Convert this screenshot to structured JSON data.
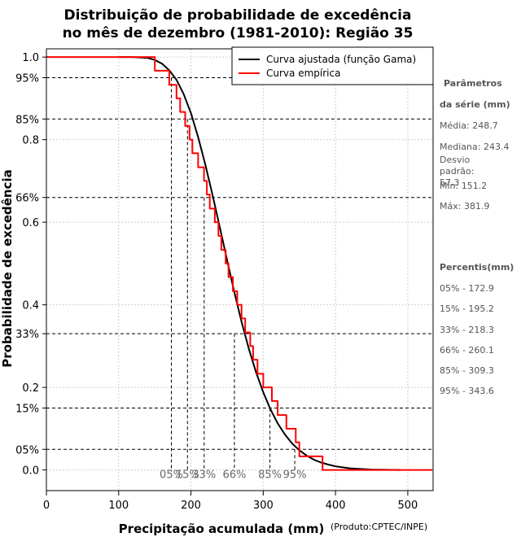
{
  "chart_data": {
    "type": "line",
    "title": [
      "Distribuição de probabilidade de excedência",
      "no mês de dezembro (1981-2010): Região 35"
    ],
    "xlabel": "Precipitação acumulada (mm)",
    "ylabel": "Probabilidade de excedência",
    "xlim": [
      0,
      535
    ],
    "ylim": [
      -0.05,
      1.02
    ],
    "x_ticks": [
      0,
      100,
      200,
      300,
      400,
      500
    ],
    "y_ticks": [
      {
        "value": 0.0,
        "label": "0.0"
      },
      {
        "value": 0.2,
        "label": "0.2"
      },
      {
        "value": 0.4,
        "label": "0.4"
      },
      {
        "value": 0.6,
        "label": "0.6"
      },
      {
        "value": 0.8,
        "label": "0.8"
      },
      {
        "value": 1.0,
        "label": "1.0"
      }
    ],
    "percentile_levels": [
      {
        "value": 0.95,
        "label": "95%"
      },
      {
        "value": 0.85,
        "label": "85%"
      },
      {
        "value": 0.66,
        "label": "66%"
      },
      {
        "value": 0.33,
        "label": "33%"
      },
      {
        "value": 0.15,
        "label": "15%"
      },
      {
        "value": 0.05,
        "label": "05%"
      }
    ],
    "percentile_marks": [
      {
        "label": "05%",
        "x": 172.9,
        "prob": 0.95
      },
      {
        "label": "15%",
        "x": 195.2,
        "prob": 0.85
      },
      {
        "label": "33%",
        "x": 218.3,
        "prob": 0.66
      },
      {
        "label": "66%",
        "x": 260.1,
        "prob": 0.33
      },
      {
        "label": "85%",
        "x": 309.3,
        "prob": 0.15
      },
      {
        "label": "95%",
        "x": 343.6,
        "prob": 0.05
      }
    ],
    "grid": true,
    "legend": {
      "placement": "top-right",
      "entries": [
        {
          "name": "Curva ajustada (função Gama)",
          "color": "#000000"
        },
        {
          "name": "Curva empírica",
          "color": "#ff0000"
        }
      ]
    },
    "series": [
      {
        "name": "Curva ajustada (função Gama)",
        "color": "#000000",
        "x": [
          100,
          120,
          140,
          150,
          160,
          170,
          180,
          190,
          200,
          210,
          220,
          230,
          240,
          250,
          260,
          270,
          280,
          290,
          300,
          310,
          320,
          330,
          340,
          350,
          360,
          370,
          380,
          390,
          400,
          420,
          450,
          490
        ],
        "y": [
          1.0,
          1.0,
          0.998,
          0.993,
          0.984,
          0.968,
          0.945,
          0.91,
          0.864,
          0.806,
          0.739,
          0.665,
          0.587,
          0.508,
          0.431,
          0.359,
          0.294,
          0.237,
          0.188,
          0.147,
          0.113,
          0.086,
          0.064,
          0.048,
          0.035,
          0.025,
          0.018,
          0.013,
          0.009,
          0.004,
          0.001,
          0.0
        ]
      },
      {
        "name": "Curva empírica",
        "color": "#ff0000",
        "step": true,
        "x": [
          0,
          150,
          150,
          155,
          155,
          170,
          170,
          180,
          180,
          185,
          185,
          192,
          192,
          198,
          198,
          202,
          202,
          210,
          210,
          218,
          218,
          222,
          222,
          226,
          226,
          233,
          233,
          238,
          238,
          242,
          242,
          248,
          248,
          252,
          252,
          258,
          258,
          264,
          264,
          270,
          270,
          275,
          275,
          282,
          282,
          286,
          286,
          292,
          292,
          300,
          300,
          312,
          312,
          320,
          320,
          332,
          332,
          345,
          345,
          350,
          350,
          362,
          362,
          368,
          368,
          382,
          382,
          534
        ],
        "y": [
          1.0,
          1.0,
          0.967,
          0.967,
          0.967,
          0.967,
          0.933,
          0.933,
          0.9,
          0.9,
          0.867,
          0.867,
          0.833,
          0.833,
          0.8,
          0.8,
          0.767,
          0.767,
          0.733,
          0.733,
          0.7,
          0.7,
          0.667,
          0.667,
          0.633,
          0.633,
          0.6,
          0.6,
          0.567,
          0.567,
          0.533,
          0.533,
          0.5,
          0.5,
          0.467,
          0.467,
          0.433,
          0.433,
          0.4,
          0.4,
          0.367,
          0.367,
          0.333,
          0.333,
          0.3,
          0.3,
          0.267,
          0.267,
          0.233,
          0.233,
          0.2,
          0.2,
          0.167,
          0.167,
          0.133,
          0.133,
          0.1,
          0.1,
          0.067,
          0.067,
          0.033,
          0.033,
          0.033,
          0.033,
          0.033,
          0.033,
          0.0,
          0.0
        ]
      }
    ]
  },
  "side_panel": {
    "params_title": [
      "Parâmetros",
      "da série (mm)"
    ],
    "params": [
      {
        "label": "Média:",
        "value": "248.7"
      },
      {
        "label": "Mediana:",
        "value": "243.4"
      },
      {
        "label": "Desvio padrão:",
        "value": "57.3"
      },
      {
        "label": "Mín:",
        "value": "151.2"
      },
      {
        "label": "Máx:",
        "value": "381.9"
      }
    ],
    "percentis_title": "Percentis(mm)",
    "percentis": [
      {
        "label": "05%",
        "value": "172.9"
      },
      {
        "label": "15%",
        "value": "195.2"
      },
      {
        "label": "33%",
        "value": "218.3"
      },
      {
        "label": "66%",
        "value": "260.1"
      },
      {
        "label": "85%",
        "value": "309.3"
      },
      {
        "label": "95%",
        "value": "343.6"
      }
    ]
  },
  "credit": "(Produto:CPTEC/INPE)"
}
